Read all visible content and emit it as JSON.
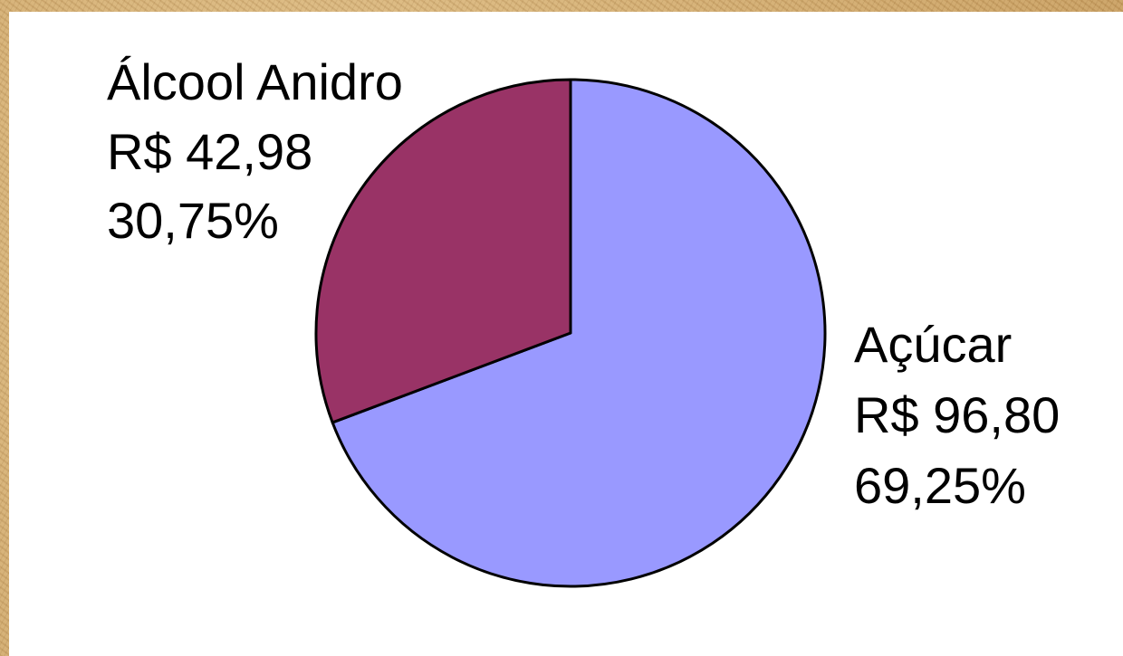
{
  "chart_data": {
    "type": "pie",
    "start_angle_deg": 0,
    "direction": "clockwise",
    "slices": [
      {
        "category": "Açúcar",
        "value_label": "R$ 96,80",
        "percent_label": "69,25%",
        "value": 96.8,
        "percent": 69.25,
        "color": "#9999ff",
        "label_position": "right"
      },
      {
        "category": "Álcool Anidro",
        "value_label": "R$ 42,98",
        "percent_label": "30,75%",
        "value": 42.98,
        "percent": 30.75,
        "color": "#993366",
        "label_position": "top-left"
      }
    ]
  }
}
